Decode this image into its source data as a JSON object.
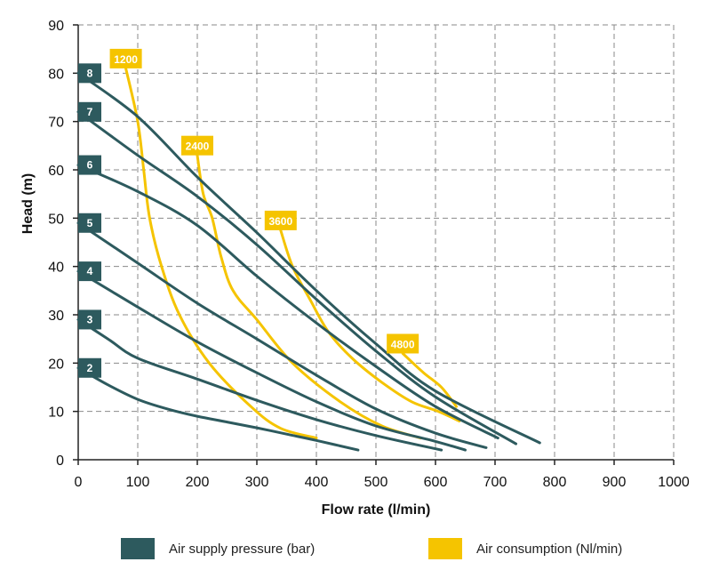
{
  "chart_data": {
    "type": "line",
    "xlabel": "Flow rate (l/min)",
    "ylabel": "Head (m)",
    "xlim": [
      0,
      1000
    ],
    "ylim": [
      0,
      90
    ],
    "xticks": [
      0,
      100,
      200,
      300,
      400,
      500,
      600,
      700,
      800,
      900,
      1000
    ],
    "yticks": [
      0,
      10,
      20,
      30,
      40,
      50,
      60,
      70,
      80,
      90
    ],
    "grid": true,
    "legend": {
      "placement": "bottom",
      "items": [
        {
          "label": "Air supply pressure (bar)",
          "color": "#2d5a5e"
        },
        {
          "label": "Air consumption (Nl/min)",
          "color": "#f5c400"
        }
      ]
    },
    "pressure_color": "#2d5a5e",
    "consumption_color": "#f5c400",
    "pressure_series": [
      {
        "name": "2",
        "points": [
          [
            0,
            19
          ],
          [
            50,
            15.5
          ],
          [
            100,
            12.5
          ],
          [
            150,
            10.5
          ],
          [
            200,
            9
          ],
          [
            250,
            7.8
          ],
          [
            300,
            6.6
          ],
          [
            350,
            5.3
          ],
          [
            400,
            4
          ],
          [
            470,
            2
          ]
        ]
      },
      {
        "name": "3",
        "points": [
          [
            0,
            29
          ],
          [
            50,
            25
          ],
          [
            100,
            21
          ],
          [
            200,
            16.7
          ],
          [
            300,
            12.3
          ],
          [
            400,
            8.3
          ],
          [
            500,
            5
          ],
          [
            610,
            2
          ]
        ]
      },
      {
        "name": "4",
        "points": [
          [
            0,
            39
          ],
          [
            100,
            31.6
          ],
          [
            200,
            24.4
          ],
          [
            300,
            18
          ],
          [
            400,
            12
          ],
          [
            500,
            7
          ],
          [
            600,
            3.8
          ],
          [
            650,
            2
          ]
        ]
      },
      {
        "name": "5",
        "points": [
          [
            0,
            49
          ],
          [
            100,
            40.7
          ],
          [
            200,
            32.4
          ],
          [
            300,
            25
          ],
          [
            400,
            17.5
          ],
          [
            500,
            10.5
          ],
          [
            600,
            5.5
          ],
          [
            685,
            2.5
          ]
        ]
      },
      {
        "name": "6",
        "points": [
          [
            0,
            61
          ],
          [
            100,
            55.5
          ],
          [
            200,
            48.5
          ],
          [
            300,
            38
          ],
          [
            400,
            28.3
          ],
          [
            500,
            19.3
          ],
          [
            600,
            11
          ],
          [
            705,
            4.5
          ]
        ]
      },
      {
        "name": "7",
        "points": [
          [
            0,
            72
          ],
          [
            100,
            63
          ],
          [
            200,
            54.5
          ],
          [
            300,
            44.5
          ],
          [
            400,
            33.2
          ],
          [
            500,
            22.5
          ],
          [
            600,
            13
          ],
          [
            735,
            3.3
          ]
        ]
      },
      {
        "name": "8",
        "points": [
          [
            0,
            80
          ],
          [
            100,
            71
          ],
          [
            200,
            58.5
          ],
          [
            300,
            47
          ],
          [
            400,
            35
          ],
          [
            500,
            24
          ],
          [
            600,
            14.2
          ],
          [
            775,
            3.5
          ]
        ]
      }
    ],
    "consumption_series": [
      {
        "name": "1200",
        "points": [
          [
            80,
            81
          ],
          [
            100,
            70
          ],
          [
            110,
            60
          ],
          [
            120,
            50
          ],
          [
            140,
            40
          ],
          [
            170,
            30
          ],
          [
            220,
            20
          ],
          [
            290,
            11
          ],
          [
            340,
            6.5
          ],
          [
            400,
            4.5
          ]
        ]
      },
      {
        "name": "2400",
        "points": [
          [
            200,
            63
          ],
          [
            210,
            55
          ],
          [
            225,
            50
          ],
          [
            240,
            42
          ],
          [
            260,
            35
          ],
          [
            300,
            29
          ],
          [
            360,
            20
          ],
          [
            440,
            12
          ],
          [
            510,
            7
          ],
          [
            575,
            4.5
          ]
        ]
      },
      {
        "name": "3600",
        "points": [
          [
            340,
            47.5
          ],
          [
            360,
            40
          ],
          [
            390,
            33
          ],
          [
            420,
            26.5
          ],
          [
            460,
            21
          ],
          [
            510,
            16
          ],
          [
            560,
            12
          ],
          [
            605,
            10
          ],
          [
            640,
            8
          ]
        ]
      },
      {
        "name": "4800",
        "points": [
          [
            545,
            22
          ],
          [
            580,
            18
          ],
          [
            610,
            15
          ],
          [
            635,
            11
          ]
        ]
      }
    ]
  }
}
